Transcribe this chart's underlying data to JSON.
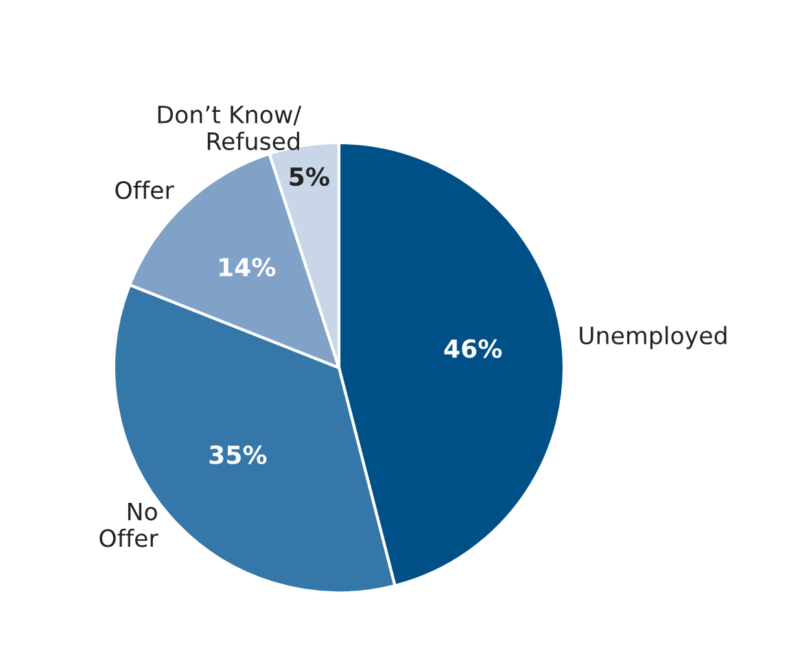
{
  "chart_data": {
    "type": "pie",
    "categories": [
      "Unemployed",
      "No\nOffer",
      "Offer",
      "Don’t Know/\nRefused"
    ],
    "values": [
      46,
      35,
      14,
      5
    ],
    "colors": [
      "#005088",
      "#3577a8",
      "#80a2c6",
      "#c8d6e8"
    ],
    "value_labels": [
      "46%",
      "35%",
      "14%",
      "5%"
    ]
  }
}
